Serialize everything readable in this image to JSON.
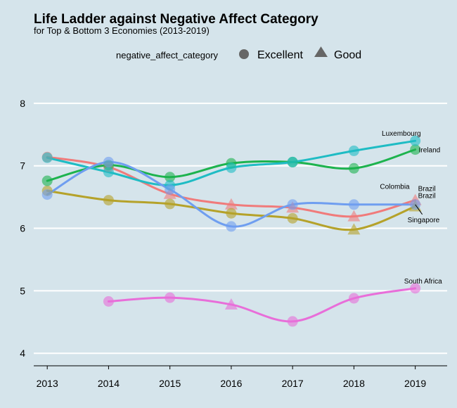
{
  "chart_data": {
    "type": "line",
    "title": "Life Ladder against Negative Affect Category",
    "subtitle": "for Top & Bottom 3 Economies (2013-2019)",
    "xlabel": "",
    "ylabel": "",
    "x": [
      2013,
      2014,
      2015,
      2016,
      2017,
      2018,
      2019
    ],
    "xlim": [
      2013,
      2019.5
    ],
    "ylim": [
      3.8,
      8
    ],
    "yticks": [
      4,
      5,
      6,
      7,
      8
    ],
    "grid": "horizontal",
    "legend": {
      "title": "negative_affect_category",
      "position": "top",
      "entries": [
        {
          "label": "Excellent",
          "shape": "circle"
        },
        {
          "label": "Good",
          "shape": "triangle"
        }
      ]
    },
    "series": [
      {
        "name": "Brazil",
        "color": "#f07b7b",
        "points": [
          [
            2013,
            7.14,
            "circle"
          ],
          [
            2014,
            6.98,
            "circle"
          ],
          [
            2015,
            6.55,
            "triangle"
          ],
          [
            2016,
            6.38,
            "triangle"
          ],
          [
            2017,
            6.33,
            "triangle"
          ],
          [
            2018,
            6.19,
            "triangle"
          ],
          [
            2019,
            6.45,
            "triangle"
          ]
        ]
      },
      {
        "name": "Colombia",
        "color": "#b5a22a",
        "points": [
          [
            2013,
            6.6,
            "circle"
          ],
          [
            2014,
            6.45,
            "circle"
          ],
          [
            2015,
            6.39,
            "circle"
          ],
          [
            2016,
            6.24,
            "circle"
          ],
          [
            2017,
            6.16,
            "circle"
          ],
          [
            2018,
            5.98,
            "triangle"
          ],
          [
            2019,
            6.35,
            "triangle"
          ]
        ]
      },
      {
        "name": "Ireland",
        "color": "#1db34e",
        "points": [
          [
            2013,
            6.76,
            "circle"
          ],
          [
            2014,
            7.01,
            "circle"
          ],
          [
            2015,
            6.82,
            "circle"
          ],
          [
            2016,
            7.04,
            "circle"
          ],
          [
            2017,
            7.06,
            "circle"
          ],
          [
            2018,
            6.96,
            "circle"
          ],
          [
            2019,
            7.26,
            "circle"
          ]
        ]
      },
      {
        "name": "Luxembourg",
        "color": "#1fbcc4",
        "points": [
          [
            2013,
            7.13,
            "circle"
          ],
          [
            2014,
            6.9,
            "circle"
          ],
          [
            2015,
            6.69,
            "circle"
          ],
          [
            2016,
            6.97,
            "circle"
          ],
          [
            2017,
            7.06,
            "circle"
          ],
          [
            2018,
            7.24,
            "circle"
          ],
          [
            2019,
            7.4,
            "circle"
          ]
        ]
      },
      {
        "name": "Singapore",
        "color": "#6f9ef0",
        "points": [
          [
            2013,
            6.54,
            "circle"
          ],
          [
            2014,
            7.06,
            "circle"
          ],
          [
            2015,
            6.62,
            "circle"
          ],
          [
            2016,
            6.03,
            "circle"
          ],
          [
            2017,
            6.38,
            "circle"
          ],
          [
            2018,
            6.38,
            "circle"
          ],
          [
            2019,
            6.38,
            "circle"
          ]
        ]
      },
      {
        "name": "South Africa",
        "color": "#e86ed9",
        "points": [
          [
            2014,
            4.83,
            "circle"
          ],
          [
            2015,
            4.89,
            "circle"
          ],
          [
            2016,
            4.78,
            "triangle"
          ],
          [
            2017,
            4.51,
            "circle"
          ],
          [
            2018,
            4.88,
            "circle"
          ],
          [
            2019,
            5.04,
            "circle"
          ]
        ]
      }
    ],
    "annotations": [
      {
        "text": "Luxembourg",
        "series": "Luxembourg"
      },
      {
        "text": "Ireland",
        "series": "Ireland"
      },
      {
        "text": "Brazil",
        "series": "Brazil"
      },
      {
        "text": "Colombia",
        "series": "Colombia"
      },
      {
        "text": "Brazil",
        "series": "Colombia"
      },
      {
        "text": "Singapore",
        "series": "Singapore"
      },
      {
        "text": "South Africa",
        "series": "South Africa"
      }
    ]
  }
}
